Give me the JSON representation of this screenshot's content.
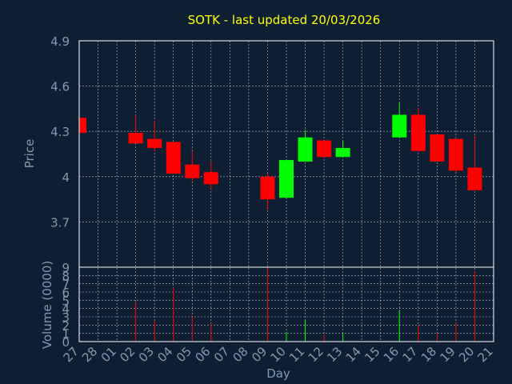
{
  "chart_data": {
    "type": "candlestick",
    "title": "SOTK - last updated 20/03/2026",
    "xlabel": "Day",
    "ylabel": "Price",
    "volume_label": "Volume (0000)",
    "grid": true,
    "colors": {
      "background": "#0f1f33",
      "up": "#00ff00",
      "down": "#ff0000",
      "title": "#ffff00",
      "axis_text": "#7f9ab8"
    },
    "x_tick_labels": [
      "27",
      "28",
      "01",
      "02",
      "03",
      "04",
      "05",
      "06",
      "07",
      "08",
      "09",
      "10",
      "11",
      "12",
      "13",
      "14",
      "15",
      "16",
      "17",
      "18",
      "19",
      "20",
      "21"
    ],
    "price_ylim": [
      3.4,
      4.9
    ],
    "price_ticks": [
      "4.9",
      "4.6",
      "4.3",
      "4",
      "3.7"
    ],
    "price_tick_values": [
      4.9,
      4.6,
      4.3,
      4.0,
      3.7
    ],
    "volume_ylim": [
      0,
      9
    ],
    "volume_ticks": [
      "9",
      "8",
      "7",
      "6",
      "5",
      "4",
      "3",
      "2",
      "1",
      "0"
    ],
    "candles": [
      {
        "day": "27",
        "open": 4.39,
        "high": 4.39,
        "low": 4.29,
        "close": 4.29,
        "volume": 0.3
      },
      {
        "day": "02",
        "open": 4.29,
        "high": 4.41,
        "low": 4.22,
        "close": 4.22,
        "volume": 4.8
      },
      {
        "day": "03",
        "open": 4.25,
        "high": 4.37,
        "low": 4.17,
        "close": 4.19,
        "volume": 2.5
      },
      {
        "day": "04",
        "open": 4.23,
        "high": 4.23,
        "low": 4.02,
        "close": 4.02,
        "volume": 6.5
      },
      {
        "day": "05",
        "open": 4.08,
        "high": 4.17,
        "low": 3.97,
        "close": 3.99,
        "volume": 3.0
      },
      {
        "day": "06",
        "open": 4.03,
        "high": 4.1,
        "low": 3.92,
        "close": 3.95,
        "volume": 2.2
      },
      {
        "day": "09",
        "open": 4.0,
        "high": 4.02,
        "low": 3.78,
        "close": 3.85,
        "volume": 9.0
      },
      {
        "day": "10",
        "open": 3.86,
        "high": 4.11,
        "low": 3.86,
        "close": 4.11,
        "volume": 1.2
      },
      {
        "day": "11",
        "open": 4.1,
        "high": 4.31,
        "low": 4.1,
        "close": 4.26,
        "volume": 2.6
      },
      {
        "day": "12",
        "open": 4.24,
        "high": 4.24,
        "low": 4.13,
        "close": 4.13,
        "volume": 0.8
      },
      {
        "day": "13",
        "open": 4.13,
        "high": 4.24,
        "low": 4.13,
        "close": 4.19,
        "volume": 1.0
      },
      {
        "day": "16",
        "open": 4.26,
        "high": 4.49,
        "low": 4.26,
        "close": 4.41,
        "volume": 3.8
      },
      {
        "day": "17",
        "open": 4.41,
        "high": 4.46,
        "low": 4.17,
        "close": 4.17,
        "volume": 2.0
      },
      {
        "day": "18",
        "open": 4.28,
        "high": 4.28,
        "low": 4.1,
        "close": 4.1,
        "volume": 1.0
      },
      {
        "day": "19",
        "open": 4.25,
        "high": 4.25,
        "low": 4.03,
        "close": 4.04,
        "volume": 2.3
      },
      {
        "day": "20",
        "open": 4.06,
        "high": 4.27,
        "low": 3.91,
        "close": 3.91,
        "volume": 8.5
      }
    ]
  }
}
